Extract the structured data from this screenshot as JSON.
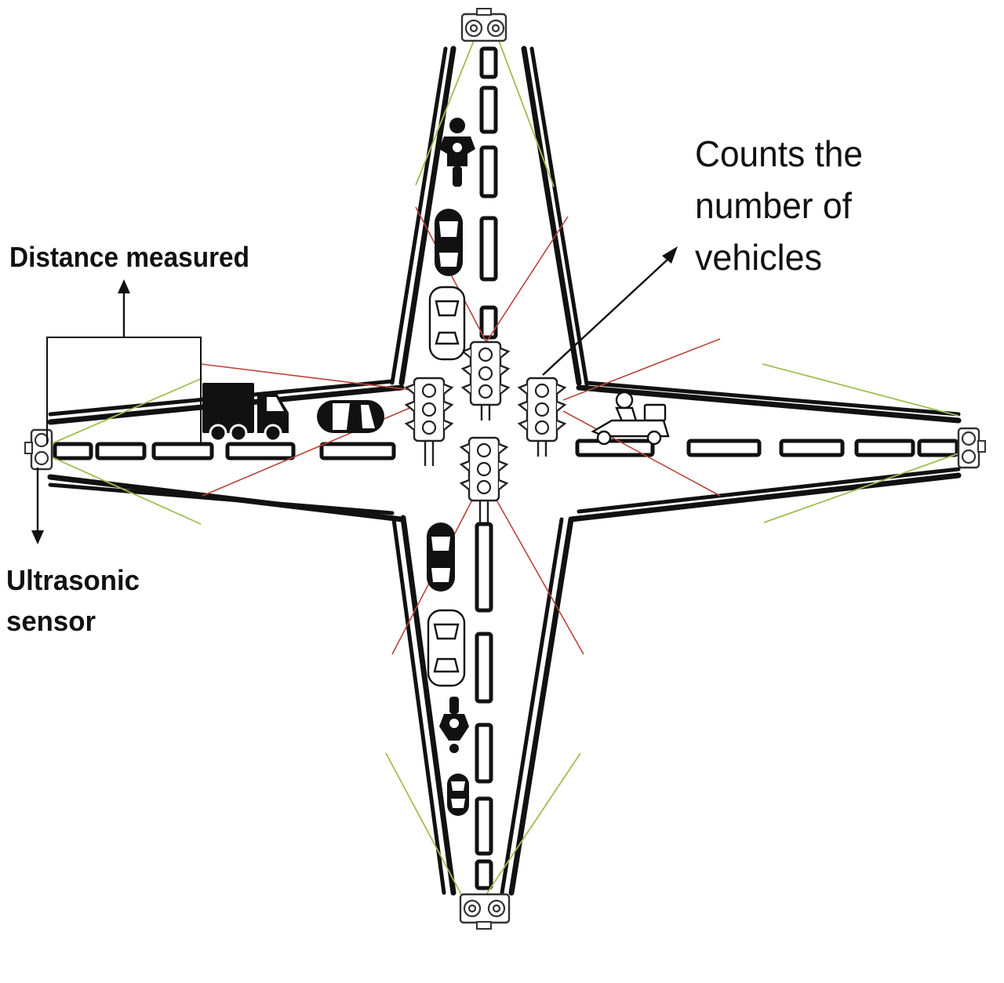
{
  "labels": {
    "distance": "Distance measured",
    "counts_line1": "Counts the",
    "counts_line2": "number of",
    "counts_line3": "vehicles",
    "ultrasonic_line1": "Ultrasonic",
    "ultrasonic_line2": "sensor"
  },
  "colors": {
    "beam_count": "#b8443a",
    "beam_distance": "#9fbf52",
    "road": "#111111"
  },
  "icons": {
    "traffic_light": "traffic-light-icon",
    "ultrasonic_sensor": "ultrasonic-sensor-icon",
    "truck": "truck-icon",
    "car": "car-icon",
    "motorbike": "motorbike-icon",
    "scooter": "scooter-icon"
  }
}
